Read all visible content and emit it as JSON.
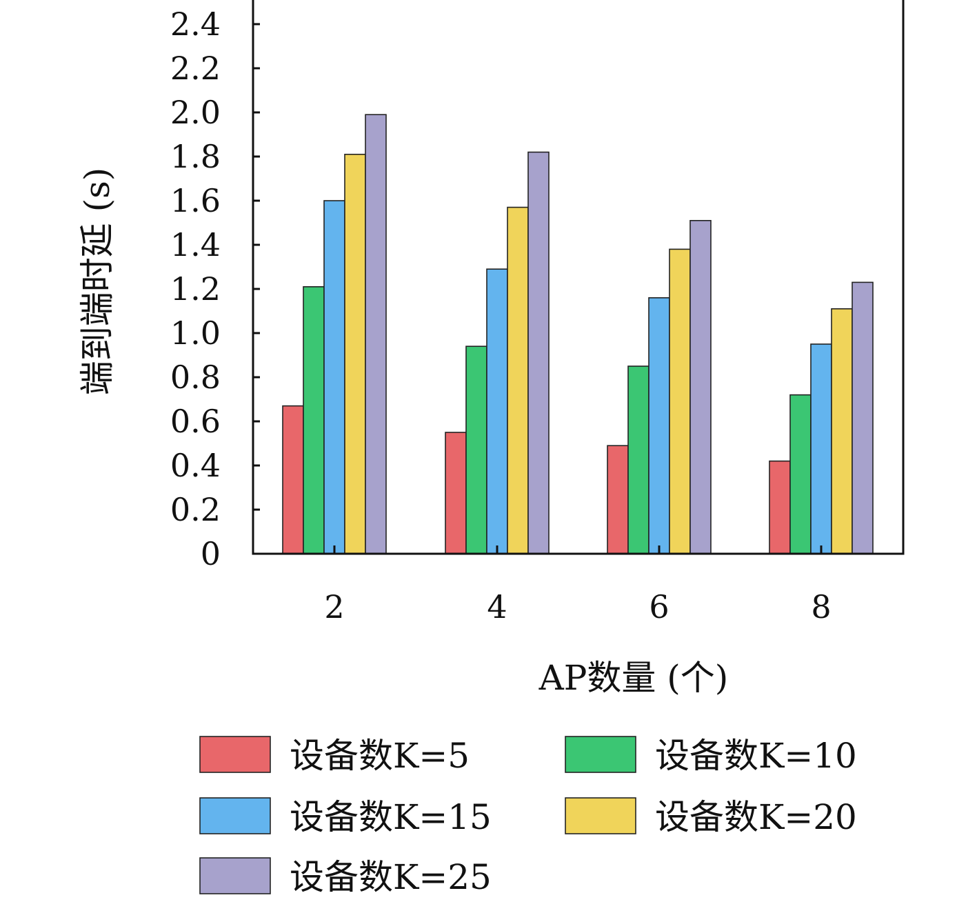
{
  "chart_data": {
    "type": "bar",
    "xlabel": "AP数量 (个)",
    "ylabel": "端到端时延 (s)",
    "categories": [
      "2",
      "4",
      "6",
      "8"
    ],
    "ylim": [
      0,
      2.4
    ],
    "yticks": [
      "0",
      "0.2",
      "0.4",
      "0.6",
      "0.8",
      "1.0",
      "1.2",
      "1.4",
      "1.6",
      "1.8",
      "2.0",
      "2.2",
      "2.4"
    ],
    "grid": false,
    "legend_position": "bottom",
    "series": [
      {
        "name": "设备数K=5",
        "color": "#e8676a",
        "values": [
          0.67,
          0.55,
          0.49,
          0.42
        ]
      },
      {
        "name": "设备数K=10",
        "color": "#3bc673",
        "values": [
          1.21,
          0.94,
          0.85,
          0.72
        ]
      },
      {
        "name": "设备数K=15",
        "color": "#63b4ee",
        "values": [
          1.6,
          1.29,
          1.16,
          0.95
        ]
      },
      {
        "name": "设备数K=20",
        "color": "#f0d45a",
        "values": [
          1.81,
          1.57,
          1.38,
          1.11
        ]
      },
      {
        "name": "设备数K=25",
        "color": "#a7a2cc",
        "values": [
          1.99,
          1.82,
          1.51,
          1.23
        ]
      }
    ]
  }
}
